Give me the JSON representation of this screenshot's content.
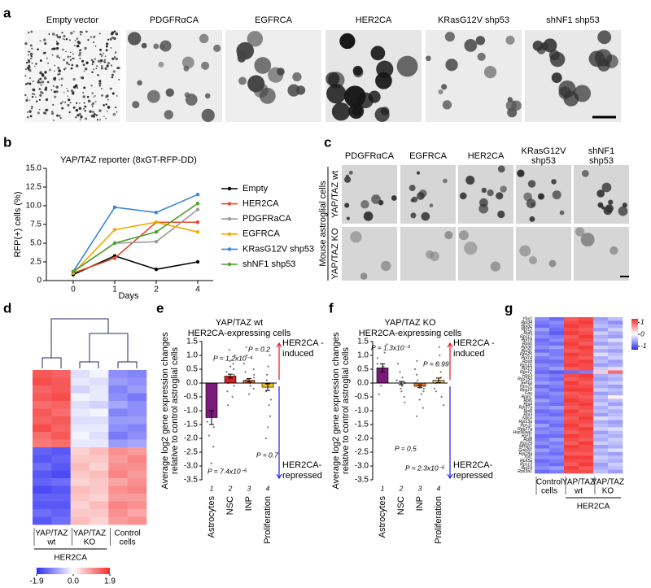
{
  "panels": {
    "a": {
      "label": "a",
      "images": [
        "Empty vector",
        "PDGFRαCA",
        "EGFRCA",
        "HER2CA",
        "KRasG12V shp53",
        "shNF1 shp53"
      ]
    },
    "c": {
      "label": "c",
      "columns": [
        [
          "PDGFRαCA"
        ],
        [
          "EGFRCA"
        ],
        [
          "HER2CA"
        ],
        [
          "KRasG12V",
          "shp53"
        ],
        [
          "shNF1",
          "shp53"
        ]
      ],
      "rows": [
        "YAP/TAZ wt",
        "YAP/TAZ KO"
      ],
      "group": "Mouse astroglial cells"
    }
  },
  "chart_data": [
    {
      "type": "line",
      "panel": "b",
      "title": "YAP/TAZ reporter (8xGT-RFP-DD)",
      "ylabel": "RFP(+) cells (%)",
      "xlabel": "Days",
      "categories": [
        "0",
        "1",
        "2",
        "4"
      ],
      "ylim": [
        0,
        15
      ],
      "yticks": [
        0,
        2.5,
        {
          "value": 5,
          "label": "5.0"
        },
        7.5,
        {
          "value": 10,
          "label": "10.0"
        },
        12.5,
        {
          "value": 15,
          "label": "15.0"
        }
      ],
      "series": [
        {
          "name": "Empty",
          "color": "#000000",
          "values": [
            0.8,
            3.3,
            1.5,
            2.5
          ]
        },
        {
          "name": "HER2CA",
          "color": "#e8472a",
          "values": [
            1.0,
            3.0,
            7.8,
            7.8
          ]
        },
        {
          "name": "PDGFRaCA",
          "color": "#9a9a9a",
          "values": [
            1.2,
            5.0,
            5.2,
            9.5
          ]
        },
        {
          "name": "EGFRCA",
          "color": "#f5a800",
          "values": [
            1.0,
            6.8,
            7.8,
            6.5
          ]
        },
        {
          "name": "KRasG12V shp53",
          "color": "#3a86d6",
          "values": [
            1.2,
            9.8,
            9.1,
            11.5
          ]
        },
        {
          "name": "shNF1 shp53",
          "color": "#4aa02c",
          "values": [
            1.2,
            5.0,
            6.5,
            10.3
          ]
        }
      ]
    },
    {
      "type": "bar",
      "panel": "e",
      "title": [
        "YAP/TAZ wt",
        "HER2CA-expressing cells"
      ],
      "ylabel": [
        "Average log2 gene expression changes",
        "relative to control astroglial cells"
      ],
      "categories": [
        "Astrocytes",
        "NSC",
        "INP",
        "Proliferation"
      ],
      "category_numbers": [
        "1",
        "2",
        "3",
        "4"
      ],
      "values": [
        -1.25,
        0.25,
        0.1,
        -0.15
      ],
      "errors": [
        0.25,
        0.07,
        0.06,
        0.12
      ],
      "colors": [
        "#7b1a7b",
        "#d62020",
        "#ee5a20",
        "#f0c020"
      ],
      "points": [
        [
          -0.6,
          -0.9,
          -1.1,
          -1.4,
          -1.6,
          -1.9,
          -2.3,
          -0.4,
          -1.2,
          -0.2,
          -2.9
        ],
        [
          1.2,
          1.0,
          0.8,
          0.6,
          0.5,
          0.4,
          0.3,
          0.2,
          0.1,
          0,
          -0.1,
          -0.3,
          -0.5,
          -0.8,
          0.7
        ],
        [
          1.3,
          1.0,
          0.7,
          0.5,
          0.3,
          0.2,
          0.1,
          0.0,
          -0.1,
          -0.2,
          -0.4,
          0.4,
          0.15,
          0.05
        ],
        [
          1.3,
          1.0,
          0.6,
          0.3,
          0.1,
          -0.1,
          -0.3,
          -0.6,
          -1.2,
          -1.6,
          -2.0,
          -0.8
        ]
      ],
      "annotations": [
        "P = 7.4x10⁻⁵",
        "P = 1.2x10⁻⁴",
        "P = 0.2",
        "P = 0.7"
      ],
      "direction_labels": [
        [
          "HER2CA -",
          "induced"
        ],
        [
          "HER2CA-",
          "repressed"
        ]
      ],
      "direction_colors": [
        "#e8141e",
        "#1e1ee8"
      ],
      "ylim": [
        -3.5,
        1.5
      ],
      "yticks": [
        1.5,
        {
          "value": 1,
          "label": "1.0"
        },
        0.5,
        {
          "value": 0,
          "label": "0.0"
        },
        -0.5,
        {
          "value": -1,
          "label": "-1.0"
        },
        -1.5,
        {
          "value": -2,
          "label": "-2.0"
        },
        -2.5,
        {
          "value": -3,
          "label": "-3.0"
        },
        -3.5
      ]
    },
    {
      "type": "bar",
      "panel": "f",
      "title": [
        "YAP/TAZ KO",
        "HER2CA-expressing cells"
      ],
      "ylabel": [
        "Average log2 gene expression changes",
        "relative to control astroglial cells"
      ],
      "categories": [
        "Astrocytes",
        "NSC",
        "INP",
        "Proliferation"
      ],
      "category_numbers": [
        "1",
        "2",
        "3",
        "4"
      ],
      "values": [
        0.55,
        0.0,
        -0.12,
        0.1
      ],
      "errors": [
        0.15,
        0.06,
        0.05,
        0.08
      ],
      "colors": [
        "#7b1a7b",
        "#d62020",
        "#f07020",
        "#f0c020"
      ],
      "points": [
        [
          1.4,
          1.1,
          0.9,
          0.7,
          0.5,
          0.3,
          0.2,
          -0.1,
          -0.4,
          0.6
        ],
        [
          0.7,
          0.4,
          0.2,
          0.1,
          0,
          -0.1,
          -0.2,
          -0.3,
          -0.5,
          -0.7,
          0.05
        ],
        [
          0.8,
          0.5,
          0.3,
          0.1,
          0,
          -0.1,
          -0.2,
          -0.3,
          -0.4,
          -0.6,
          -0.9,
          -1.2
        ],
        [
          1.3,
          1.0,
          0.7,
          0.4,
          0.2,
          0,
          -0.2,
          -0.5,
          -0.8,
          -0.3
        ]
      ],
      "annotations": [
        "P = 1.3x10⁻³",
        "P = 0.99",
        "P = 0.5",
        "P = 2.3x10⁻⁶"
      ],
      "direction_labels": [
        [
          "HER2CA -",
          "induced"
        ],
        [
          "HER2CA-",
          "repressed"
        ]
      ],
      "direction_colors": [
        "#e8141e",
        "#1e1ee8"
      ],
      "ylim": [
        -3.5,
        1.5
      ],
      "yticks": [
        1.5,
        {
          "value": 1,
          "label": "1.0"
        },
        0.5,
        {
          "value": 0,
          "label": "0.0"
        },
        -0.5,
        {
          "value": -1,
          "label": "-1.0"
        },
        -1.5,
        {
          "value": -2,
          "label": "-2.0"
        },
        -2.5,
        {
          "value": -3,
          "label": "-3.0"
        },
        -3.5
      ]
    },
    {
      "type": "heatmap",
      "panel": "d",
      "column_groups": [
        [
          "YAP/TAZ",
          "wt"
        ],
        [
          "YAP/TAZ",
          "KO"
        ],
        [
          "Control",
          "cells"
        ]
      ],
      "group_label": "HER2CA",
      "zlim": [
        -1.9,
        1.9
      ],
      "ticks": [
        -1.9,
        {
          "value": 0,
          "label": "0.0"
        },
        1.9
      ],
      "colors": [
        "#2b2bf5",
        "#ffffff",
        "#f52b2b"
      ],
      "values": [
        [
          1.5,
          1.4,
          -0.3,
          -0.1,
          -1.0,
          -1.1
        ],
        [
          1.6,
          1.5,
          -0.2,
          -0.3,
          -0.9,
          -1.0
        ],
        [
          1.4,
          1.5,
          -0.4,
          -0.2,
          -1.1,
          -0.9
        ],
        [
          1.5,
          1.6,
          -0.1,
          -0.2,
          -1.0,
          -1.2
        ],
        [
          1.3,
          1.4,
          -0.3,
          -0.4,
          -0.8,
          -1.0
        ],
        [
          1.5,
          1.3,
          -0.2,
          -0.1,
          -1.1,
          -1.0
        ],
        [
          1.4,
          1.5,
          -0.3,
          -0.3,
          -0.9,
          -0.9
        ],
        [
          1.6,
          1.4,
          -0.2,
          -0.2,
          -1.0,
          -1.1
        ],
        [
          1.3,
          1.5,
          -0.1,
          -0.3,
          -1.2,
          -1.0
        ],
        [
          1.2,
          1.3,
          -0.2,
          -0.2,
          -0.9,
          -0.8
        ],
        [
          -1.4,
          -1.5,
          0.4,
          0.6,
          1.0,
          0.9
        ],
        [
          -1.5,
          -1.4,
          0.5,
          0.5,
          0.9,
          1.1
        ],
        [
          -1.3,
          -1.5,
          0.6,
          0.4,
          1.0,
          1.0
        ],
        [
          -1.5,
          -1.6,
          0.5,
          0.6,
          1.1,
          0.9
        ],
        [
          -1.4,
          -1.3,
          0.4,
          0.5,
          0.8,
          1.0
        ],
        [
          -1.6,
          -1.5,
          0.6,
          0.5,
          1.0,
          1.1
        ],
        [
          -1.4,
          -1.4,
          0.5,
          0.4,
          0.9,
          0.9
        ],
        [
          -1.5,
          -1.5,
          0.4,
          0.6,
          1.1,
          1.0
        ],
        [
          -1.3,
          -1.4,
          0.5,
          0.5,
          1.0,
          0.8
        ],
        [
          -1.5,
          -1.3,
          0.6,
          0.4,
          0.9,
          1.0
        ]
      ]
    },
    {
      "type": "heatmap",
      "panel": "g",
      "column_groups": [
        [
          "Control",
          "cells"
        ],
        [
          "YAP/TAZ",
          "wt"
        ],
        [
          "YAP/TAZ",
          "KO"
        ]
      ],
      "group_label": "HER2CA",
      "zlim": [
        -1.3,
        1.3
      ],
      "ticks": [
        1,
        0,
        -1
      ],
      "colors": [
        "#2b2bf5",
        "#ffffff",
        "#f52b2b"
      ],
      "row_labels": [
        "Ybx1",
        "Rpl34",
        "Rpl32",
        "Rpl12",
        "Rpl5",
        "Rps17",
        "Rpl18",
        "Rps6",
        "Rpl36",
        "Rpl31",
        "Rps25",
        "Rpl14",
        "Rps8",
        "Rps16",
        "Rpl13",
        "Rps12",
        "Rps3",
        "Rps15a",
        "Eef1g",
        "Rps21",
        "Rps10",
        "Fau",
        "Rplp1",
        "Rpl6",
        "Rpl4",
        "Rpl37a",
        "Rpl9",
        "Rpl3",
        "Naca",
        "Rpl13a",
        "Rps11",
        "Rps27a",
        "Hsp90aa1",
        "Rpl11",
        "Rpl8",
        "Rps29",
        "Mrfap1",
        "Gnb2l1",
        "Rpl18a",
        "Tpt1",
        "Rps5a",
        "Rps13",
        "Rpl14",
        "Rps3a1"
      ],
      "values": [
        [
          -0.7,
          -0.9,
          1.0,
          1.1,
          -0.6,
          -0.4
        ],
        [
          -0.8,
          -0.7,
          1.1,
          1.2,
          -0.5,
          -0.7
        ],
        [
          -0.9,
          -0.8,
          1.2,
          1.1,
          -0.4,
          -0.5
        ],
        [
          -0.6,
          -0.9,
          1.1,
          1.0,
          -0.6,
          -0.3
        ],
        [
          -0.8,
          -1.0,
          1.2,
          1.1,
          -0.3,
          -0.5
        ],
        [
          -0.7,
          -0.8,
          1.0,
          1.2,
          -0.5,
          -0.6
        ],
        [
          -0.9,
          -0.7,
          1.1,
          1.1,
          -0.4,
          -0.2
        ],
        [
          -0.8,
          -0.9,
          1.2,
          1.0,
          -0.6,
          -0.5
        ],
        [
          -0.7,
          -0.6,
          1.1,
          1.2,
          -0.3,
          -0.4
        ],
        [
          -0.9,
          -0.8,
          1.0,
          1.1,
          -0.5,
          -0.6
        ],
        [
          -0.6,
          -0.8,
          1.2,
          1.1,
          -0.2,
          -0.4
        ],
        [
          -0.8,
          -0.7,
          1.1,
          1.0,
          -0.5,
          -0.3
        ],
        [
          -0.9,
          -0.9,
          1.1,
          1.2,
          -0.4,
          -0.6
        ],
        [
          -0.7,
          -0.8,
          1.2,
          1.1,
          -0.6,
          -0.5
        ],
        [
          -0.8,
          -0.6,
          1.0,
          1.1,
          -0.3,
          -0.2
        ],
        [
          -0.9,
          -1.0,
          -0.9,
          -0.8,
          0.3,
          0.9
        ],
        [
          -0.7,
          -0.8,
          1.1,
          1.2,
          -0.5,
          -0.4
        ],
        [
          -0.8,
          -0.9,
          1.0,
          1.1,
          -0.6,
          -0.5
        ],
        [
          -0.6,
          -0.7,
          1.2,
          1.0,
          -0.4,
          -0.3
        ],
        [
          -0.9,
          -0.8,
          1.1,
          1.1,
          -0.5,
          -0.6
        ],
        [
          -0.7,
          -0.9,
          1.2,
          1.2,
          -0.3,
          -0.4
        ],
        [
          -0.8,
          -0.7,
          1.0,
          1.1,
          -0.6,
          -0.5
        ],
        [
          -0.9,
          -0.8,
          1.1,
          1.0,
          -0.4,
          0.1
        ],
        [
          -0.6,
          -0.8,
          1.2,
          1.1,
          -0.5,
          -0.4
        ],
        [
          -0.8,
          -0.9,
          1.1,
          1.2,
          -0.3,
          -0.6
        ],
        [
          -0.7,
          -0.6,
          1.0,
          1.1,
          -0.5,
          -0.3
        ],
        [
          -0.9,
          -0.8,
          1.2,
          1.0,
          -0.4,
          -0.5
        ],
        [
          -0.8,
          -0.9,
          1.1,
          1.1,
          -0.6,
          -0.4
        ],
        [
          -0.7,
          -0.7,
          1.0,
          1.2,
          -0.2,
          -0.3
        ],
        [
          -0.9,
          -0.8,
          1.1,
          1.1,
          -0.5,
          -0.6
        ],
        [
          -0.6,
          -0.9,
          1.2,
          1.0,
          -0.4,
          -0.5
        ],
        [
          -0.8,
          -0.7,
          1.1,
          1.2,
          -0.3,
          -0.2
        ],
        [
          -0.7,
          -0.8,
          1.0,
          1.1,
          -0.6,
          -0.4
        ],
        [
          -0.9,
          -0.9,
          1.2,
          1.1,
          -0.4,
          -0.5
        ],
        [
          -0.8,
          -0.6,
          1.1,
          1.0,
          -0.5,
          -0.3
        ],
        [
          -0.7,
          -0.8,
          1.0,
          1.2,
          -0.3,
          -0.4
        ],
        [
          -0.9,
          -0.7,
          1.2,
          1.1,
          -0.6,
          -0.5
        ],
        [
          -0.6,
          -0.8,
          1.1,
          1.1,
          -0.4,
          -0.2
        ],
        [
          -0.8,
          -0.9,
          1.0,
          1.0,
          -0.5,
          -0.6
        ],
        [
          -0.7,
          -0.7,
          1.2,
          1.2,
          -0.3,
          -0.4
        ],
        [
          -0.9,
          -0.8,
          1.1,
          1.1,
          -0.4,
          -0.5
        ],
        [
          -0.8,
          -0.9,
          1.0,
          1.2,
          -0.6,
          -0.3
        ],
        [
          -0.7,
          -0.6,
          1.2,
          1.0,
          -0.5,
          -0.4
        ],
        [
          -0.9,
          -0.8,
          1.1,
          1.1,
          -0.4,
          -0.6
        ]
      ]
    }
  ]
}
